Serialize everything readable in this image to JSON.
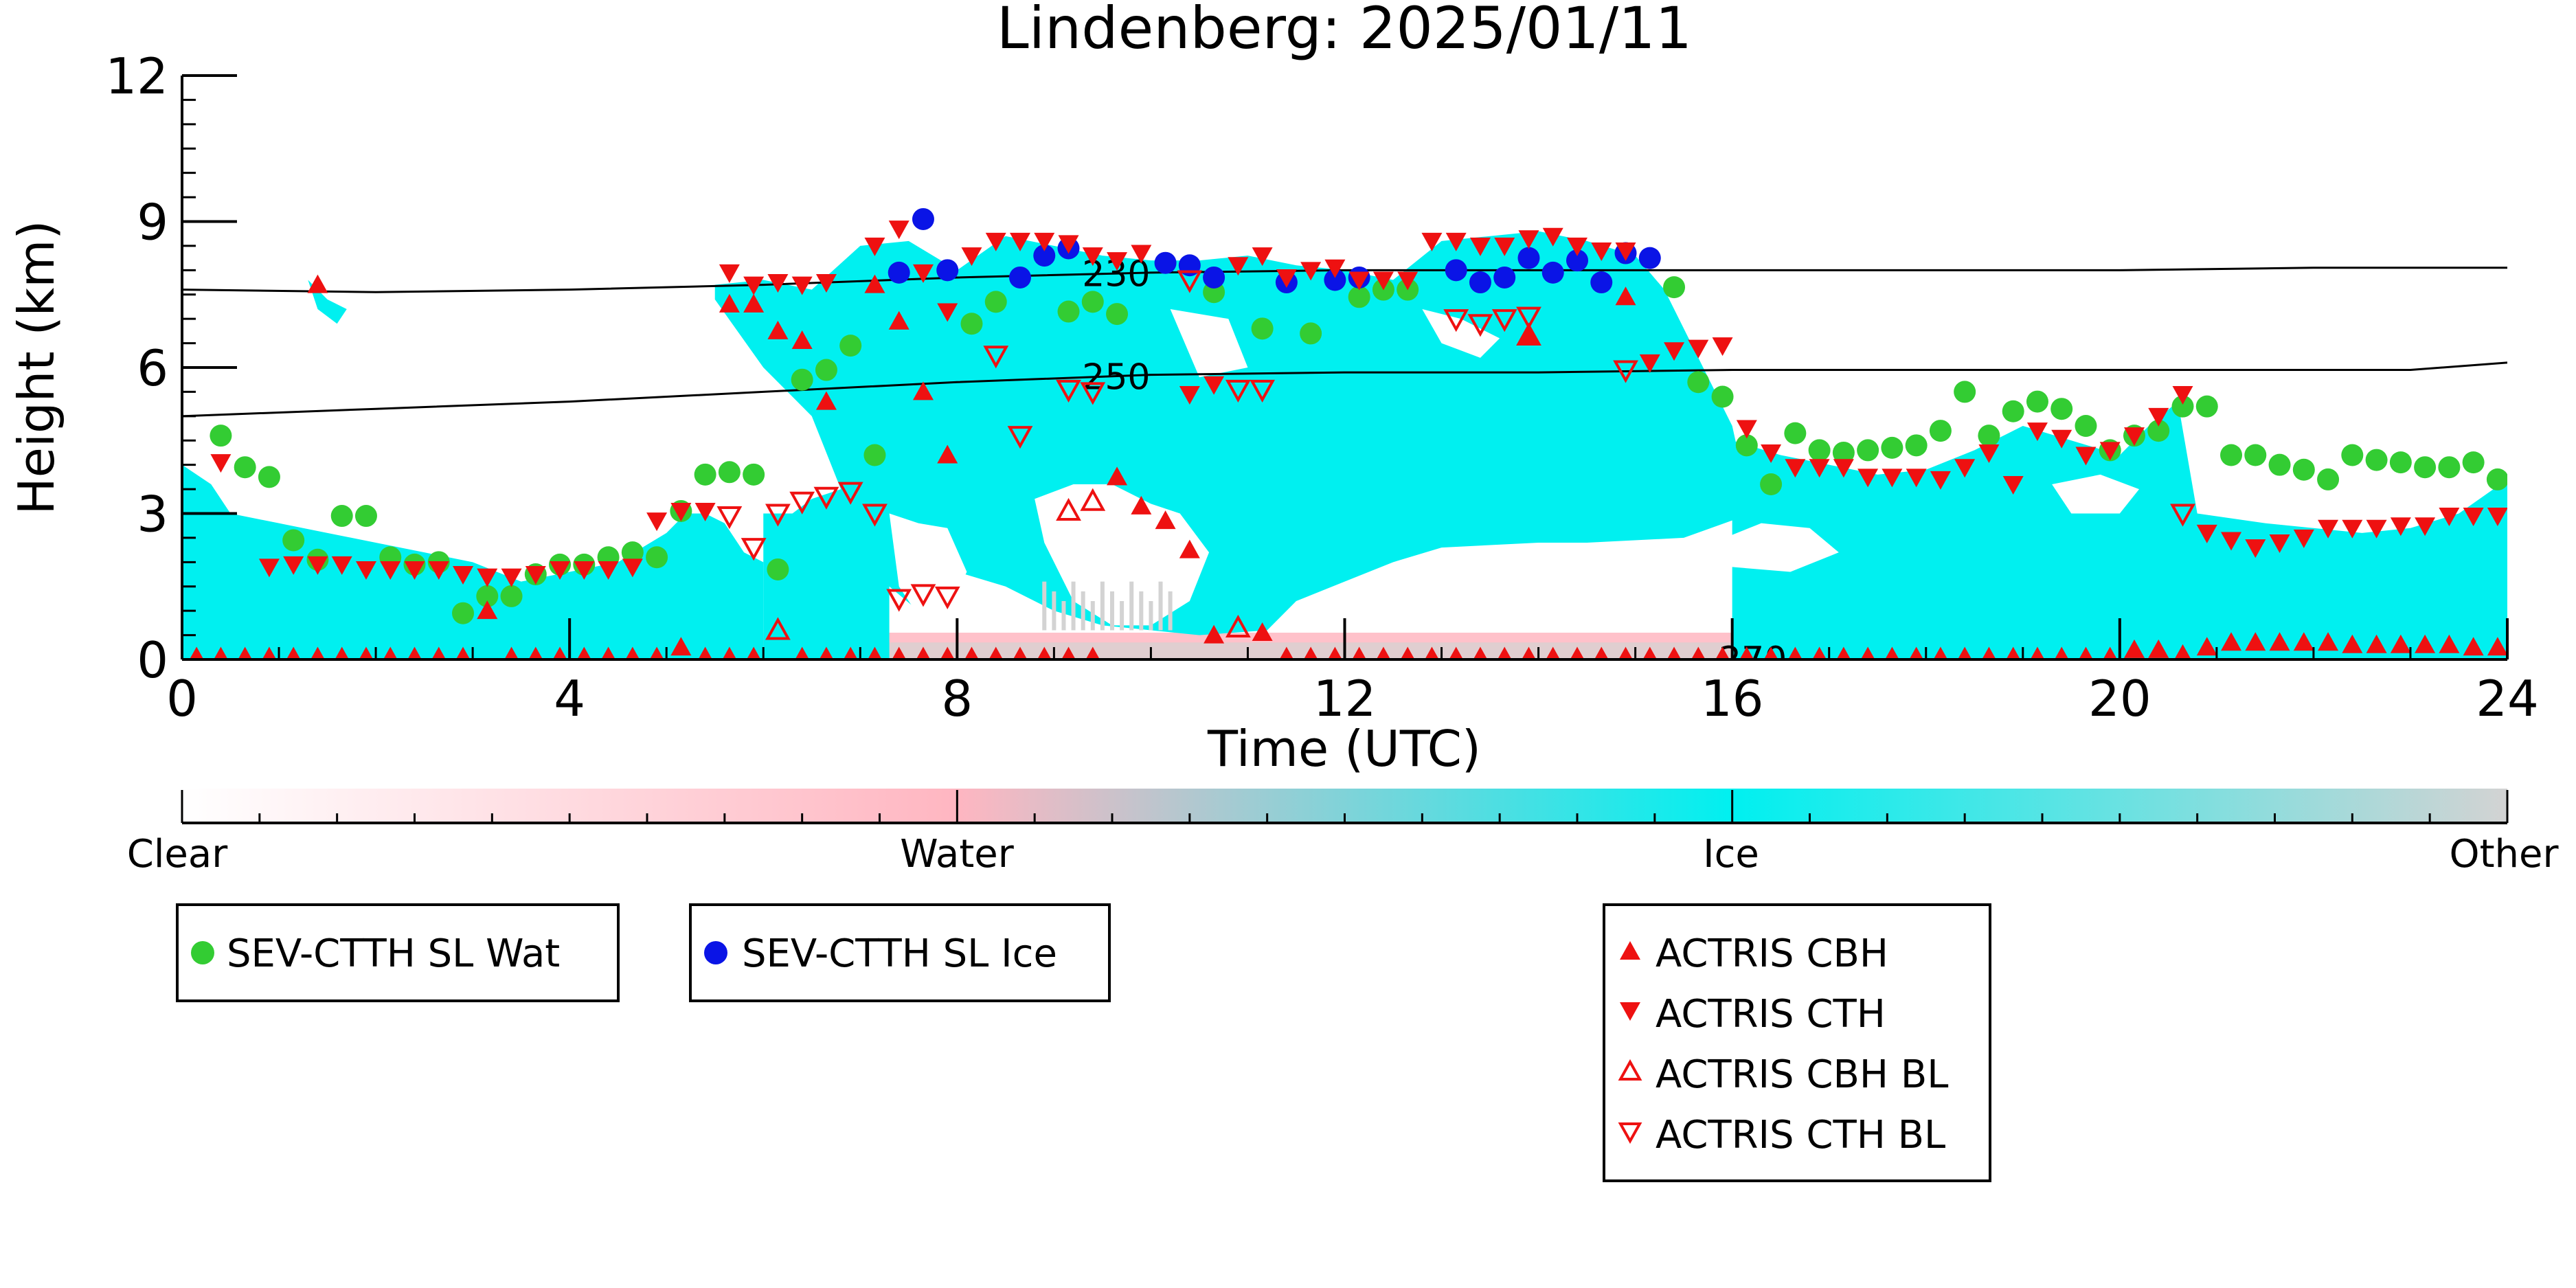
{
  "chart_data": {
    "type": "scatter",
    "title": "Lindenberg: 2025/01/11",
    "xlabel": "Time (UTC)",
    "ylabel": "Height (km)",
    "xlim": [
      0,
      24
    ],
    "ylim": [
      0,
      12
    ],
    "xticks": [
      0,
      4,
      8,
      12,
      16,
      20,
      24
    ],
    "yticks": [
      0,
      3,
      6,
      9,
      12
    ],
    "grid": false,
    "background_field": {
      "description_classes": [
        "Clear",
        "Water",
        "Ice",
        "Other"
      ],
      "colorbar": {
        "labels": [
          "Clear",
          "Water",
          "Ice",
          "Other"
        ],
        "colors": {
          "clear": "#ffffff",
          "water": "#ffb6c1",
          "ice": "#00f0f0",
          "other": "#d3d3d3"
        }
      },
      "ice_regions": [
        {
          "x": [
            0.0,
            0.3,
            0.5,
            1.0,
            1.5,
            2.0,
            2.5,
            3.0,
            3.5,
            4.0,
            4.5,
            5.0,
            5.2,
            5.4,
            5.6,
            5.8,
            6.0,
            6.0,
            0.0
          ],
          "y": [
            4.0,
            3.6,
            3.0,
            2.8,
            2.6,
            2.4,
            2.2,
            2.0,
            1.6,
            1.8,
            2.0,
            2.6,
            3.0,
            3.0,
            2.8,
            2.2,
            2.0,
            0.0,
            0.0
          ]
        },
        {
          "x": [
            6.0,
            6.3,
            6.5,
            6.8,
            7.0,
            7.2,
            7.3,
            7.3,
            6.0
          ],
          "y": [
            3.0,
            3.0,
            3.3,
            3.5,
            3.3,
            3.0,
            2.6,
            0.0,
            0.0
          ]
        },
        {
          "x": [
            1.3,
            1.5,
            1.7,
            1.6,
            1.4
          ],
          "y": [
            7.8,
            7.4,
            7.2,
            6.9,
            7.2
          ]
        },
        {
          "x": [
            5.5,
            6.0,
            6.5,
            7.0,
            7.5,
            8.0,
            8.5,
            9.0,
            9.5,
            10.0,
            10.5,
            11.0,
            11.5,
            12.0,
            12.5,
            13.0,
            13.5,
            14.0,
            14.5,
            15.0,
            15.3,
            15.6,
            16.0,
            16.2,
            15.5,
            14.5,
            14.0,
            13.0,
            12.5,
            12.0,
            11.5,
            11.2,
            10.5,
            10.0,
            9.5,
            9.0,
            8.5,
            8.0,
            7.6,
            7.3,
            7.0,
            6.5,
            6.0,
            5.5
          ],
          "y": [
            7.7,
            7.8,
            7.6,
            8.5,
            8.6,
            8.0,
            8.7,
            8.5,
            8.3,
            8.2,
            8.2,
            8.3,
            8.1,
            8.0,
            7.8,
            8.6,
            8.7,
            8.8,
            8.6,
            8.3,
            7.6,
            6.4,
            4.8,
            3.0,
            2.5,
            2.4,
            2.4,
            2.3,
            2.0,
            1.6,
            1.2,
            0.6,
            0.5,
            0.6,
            0.7,
            1.0,
            1.5,
            1.8,
            1.0,
            1.5,
            2.5,
            5.0,
            6.0,
            7.4
          ]
        },
        {
          "x": [
            16.0,
            16.5,
            17.0,
            17.5,
            18.0,
            18.5,
            19.0,
            19.5,
            20.0,
            20.3,
            20.6,
            20.8,
            21.5,
            22.0,
            22.5,
            23.0,
            23.5,
            24.0,
            24.0,
            16.0
          ],
          "y": [
            4.5,
            4.2,
            4.0,
            3.8,
            3.9,
            4.3,
            4.8,
            4.5,
            4.2,
            4.8,
            5.3,
            3.0,
            2.8,
            2.7,
            2.6,
            2.7,
            3.0,
            3.7,
            0.0,
            0.0
          ]
        }
      ],
      "clear_holes": [
        {
          "x": [
            8.8,
            9.2,
            9.6,
            10.0,
            10.3,
            10.6,
            10.4,
            10.0,
            9.6,
            9.2,
            8.9
          ],
          "y": [
            3.3,
            3.6,
            3.6,
            3.2,
            3.0,
            2.2,
            1.2,
            0.7,
            0.7,
            1.2,
            2.4
          ]
        },
        {
          "x": [
            7.3,
            7.6,
            7.9,
            8.1,
            7.9,
            7.6,
            7.4
          ],
          "y": [
            3.0,
            2.8,
            2.7,
            1.8,
            1.0,
            0.9,
            1.5
          ]
        },
        {
          "x": [
            10.2,
            10.8,
            11.0,
            10.5
          ],
          "y": [
            7.2,
            7.0,
            6.0,
            5.8
          ]
        },
        {
          "x": [
            12.8,
            13.2,
            13.6,
            13.4,
            13.0
          ],
          "y": [
            7.2,
            7.0,
            6.6,
            6.2,
            6.5
          ]
        },
        {
          "x": [
            15.8,
            16.3,
            16.8,
            17.1,
            16.6,
            16.0
          ],
          "y": [
            2.4,
            2.8,
            2.7,
            2.2,
            1.8,
            1.9
          ]
        },
        {
          "x": [
            19.3,
            19.8,
            20.2,
            20.0,
            19.5
          ],
          "y": [
            3.6,
            3.8,
            3.5,
            3.0,
            3.0
          ]
        }
      ],
      "water_band": {
        "top_km": 0.55,
        "other_band_top_km": 0.35
      }
    },
    "contours": [
      {
        "label": "230",
        "label_x": 9.5,
        "x": [
          0,
          2,
          4,
          6,
          8,
          10,
          12,
          14,
          16,
          18,
          20,
          22,
          24
        ],
        "y": [
          7.6,
          7.55,
          7.6,
          7.7,
          7.85,
          7.95,
          8.0,
          8.0,
          8.0,
          8.0,
          8.0,
          8.05,
          8.05
        ]
      },
      {
        "label": "250",
        "label_x": 9.5,
        "x": [
          0,
          2,
          4,
          6,
          8,
          10,
          12,
          14,
          16,
          18,
          20,
          22,
          23,
          24
        ],
        "y": [
          5.0,
          5.15,
          5.3,
          5.5,
          5.7,
          5.85,
          5.9,
          5.9,
          5.95,
          5.95,
          5.95,
          5.95,
          5.95,
          6.1
        ]
      },
      {
        "label": "270",
        "label_x": 16.0,
        "x": [],
        "y": []
      }
    ],
    "series": [
      {
        "name": "SEV-CTTH SL Wat",
        "marker": "circle",
        "color": "#33cc33",
        "x": [
          0.4,
          0.65,
          0.9,
          1.15,
          1.4,
          1.65,
          1.9,
          2.15,
          2.4,
          2.65,
          2.9,
          3.15,
          3.4,
          3.65,
          3.9,
          4.15,
          4.4,
          4.65,
          4.9,
          5.15,
          5.4,
          5.65,
          5.9,
          6.15,
          6.4,
          6.65,
          6.9,
          7.15,
          8.15,
          8.4,
          9.15,
          9.4,
          9.65,
          10.65,
          11.15,
          11.65,
          12.15,
          12.4,
          12.65,
          15.4,
          15.65,
          15.9,
          16.15,
          16.4,
          16.65,
          16.9,
          17.15,
          17.4,
          17.65,
          17.9,
          18.15,
          18.4,
          18.65,
          18.9,
          19.15,
          19.4,
          19.65,
          19.9,
          20.15,
          20.4,
          20.65,
          20.9,
          21.15,
          21.4,
          21.65,
          21.9,
          22.15,
          22.4,
          22.65,
          22.9,
          23.15,
          23.4,
          23.65,
          23.9
        ],
        "y": [
          4.6,
          3.95,
          3.75,
          2.45,
          2.05,
          2.95,
          2.95,
          2.1,
          1.95,
          2.0,
          0.95,
          1.3,
          1.3,
          1.75,
          1.95,
          1.95,
          2.1,
          2.2,
          2.1,
          3.05,
          3.8,
          3.85,
          3.8,
          1.85,
          5.75,
          5.95,
          6.45,
          4.2,
          6.9,
          7.35,
          7.15,
          7.35,
          7.1,
          7.55,
          6.8,
          6.7,
          7.45,
          7.6,
          7.6,
          7.65,
          5.7,
          5.4,
          4.4,
          3.6,
          4.65,
          4.3,
          4.25,
          4.3,
          4.35,
          4.4,
          4.7,
          5.5,
          4.6,
          5.1,
          5.3,
          5.15,
          4.8,
          4.3,
          4.6,
          4.7,
          5.2,
          5.2,
          4.2,
          4.2,
          4.0,
          3.9,
          3.7,
          4.2,
          4.1,
          4.05,
          3.95,
          3.95,
          4.05,
          3.7
        ]
      },
      {
        "name": "SEV-CTTH SL Ice",
        "marker": "circle",
        "color": "#0a14e6",
        "x": [
          7.4,
          7.65,
          7.9,
          8.65,
          8.9,
          9.15,
          10.15,
          10.4,
          10.65,
          11.4,
          11.9,
          12.15,
          13.15,
          13.4,
          13.65,
          13.9,
          14.15,
          14.4,
          14.65,
          14.9,
          15.15
        ],
        "y": [
          7.95,
          9.05,
          8.0,
          7.85,
          8.3,
          8.45,
          8.15,
          8.1,
          7.85,
          7.75,
          7.8,
          7.85,
          8.0,
          7.75,
          7.85,
          8.25,
          7.95,
          8.2,
          7.75,
          8.35,
          8.25
        ]
      },
      {
        "name": "ACTRIS CBH",
        "marker": "triangle-up",
        "filled": true,
        "color": "#ee1111",
        "x": [
          1.4,
          3.15,
          5.15,
          5.65,
          5.9,
          6.15,
          6.4,
          6.65,
          7.15,
          7.4,
          7.65,
          7.9,
          9.65,
          9.9,
          10.15,
          10.4,
          10.65,
          11.15,
          13.9,
          14.9,
          20.65,
          21.15,
          21.4,
          21.65,
          21.9,
          22.15,
          22.4,
          22.65,
          22.9,
          23.15,
          23.4,
          23.65,
          23.9
        ],
        "y": [
          7.7,
          1.0,
          0.25,
          7.3,
          7.3,
          6.75,
          6.55,
          5.3,
          7.7,
          6.95,
          5.5,
          4.2,
          3.75,
          3.15,
          2.85,
          2.25,
          0.5,
          0.55,
          6.65,
          7.45,
          0.1,
          0.35,
          0.35,
          0.35,
          0.35,
          0.35,
          0.3,
          0.3,
          0.3,
          0.3,
          0.3,
          0.25,
          0.25
        ]
      },
      {
        "name": "ACTRIS CTH",
        "marker": "triangle-down",
        "filled": true,
        "color": "#ee1111",
        "x": [
          0.4,
          0.9,
          1.15,
          1.4,
          1.65,
          1.9,
          2.15,
          2.4,
          2.65,
          2.9,
          3.15,
          3.4,
          3.65,
          3.9,
          4.15,
          4.4,
          4.65,
          4.9,
          5.15,
          5.4,
          5.65,
          5.9,
          6.15,
          6.4,
          6.65,
          7.15,
          7.4,
          7.65,
          7.9,
          8.15,
          8.4,
          8.65,
          8.9,
          9.15,
          9.4,
          9.65,
          9.9,
          10.4,
          10.65,
          10.9,
          11.15,
          11.4,
          11.65,
          11.9,
          12.15,
          12.4,
          12.65,
          12.9,
          13.15,
          13.4,
          13.65,
          13.9,
          14.15,
          14.4,
          14.65,
          14.9,
          15.15,
          15.4,
          15.65,
          15.9,
          16.15,
          16.4,
          16.65,
          16.9,
          17.15,
          17.4,
          17.65,
          17.9,
          18.15,
          18.4,
          18.65,
          18.9,
          19.15,
          19.4,
          19.65,
          19.9,
          20.15,
          20.4,
          20.65,
          20.9,
          21.15,
          21.4,
          21.65,
          21.9,
          22.15,
          22.4,
          22.65,
          22.9,
          23.15,
          23.4,
          23.65,
          23.9
        ],
        "y": [
          4.05,
          1.9,
          1.95,
          1.95,
          1.95,
          1.85,
          1.85,
          1.85,
          1.85,
          1.75,
          1.7,
          1.7,
          1.75,
          1.85,
          1.85,
          1.85,
          1.9,
          2.85,
          3.05,
          3.05,
          7.95,
          7.7,
          7.75,
          7.7,
          7.75,
          8.5,
          8.85,
          7.95,
          7.15,
          8.3,
          8.6,
          8.6,
          8.6,
          8.55,
          8.3,
          8.2,
          8.35,
          5.45,
          5.65,
          8.1,
          8.3,
          7.85,
          8.0,
          8.05,
          7.8,
          7.8,
          7.8,
          8.6,
          8.6,
          8.5,
          8.5,
          8.65,
          8.7,
          8.5,
          8.4,
          8.4,
          6.1,
          6.35,
          6.4,
          6.45,
          4.75,
          4.25,
          3.95,
          3.95,
          3.95,
          3.75,
          3.75,
          3.75,
          3.7,
          3.95,
          4.25,
          3.6,
          4.7,
          4.55,
          4.2,
          4.3,
          4.6,
          5.0,
          5.45,
          2.6,
          2.45,
          2.3,
          2.4,
          2.5,
          2.7,
          2.7,
          2.7,
          2.75,
          2.75,
          2.95,
          2.95,
          2.95
        ]
      },
      {
        "name": "ACTRIS CBH BL",
        "marker": "triangle-up",
        "filled": false,
        "color": "#ee1111",
        "x": [
          6.15,
          9.15,
          9.4,
          10.9,
          13.9
        ],
        "y": [
          0.6,
          3.05,
          3.25,
          0.65,
          6.65
        ]
      },
      {
        "name": "ACTRIS CTH BL",
        "marker": "triangle-down",
        "filled": false,
        "color": "#ee1111",
        "x": [
          5.65,
          5.9,
          6.15,
          6.4,
          6.65,
          6.9,
          7.15,
          7.4,
          7.65,
          7.9,
          8.4,
          8.65,
          9.15,
          9.4,
          10.4,
          10.9,
          11.15,
          13.15,
          13.4,
          13.65,
          13.9,
          14.9,
          20.65
        ],
        "y": [
          2.95,
          2.3,
          3.0,
          3.25,
          3.35,
          3.45,
          3.0,
          1.25,
          1.35,
          1.3,
          6.25,
          4.6,
          5.55,
          5.5,
          7.8,
          5.55,
          5.55,
          7.0,
          6.9,
          7.0,
          7.05,
          5.95,
          3.0
        ]
      },
      {
        "name": "ACTRIS CBH (surface)",
        "marker": "triangle-up",
        "filled": true,
        "color": "#ee1111",
        "in_legend": false,
        "x": [
          0.15,
          0.4,
          0.65,
          0.9,
          1.15,
          1.4,
          1.65,
          1.9,
          2.15,
          2.4,
          2.65,
          2.9,
          3.4,
          3.65,
          3.9,
          4.15,
          4.4,
          4.65,
          4.9,
          5.4,
          5.65,
          5.9,
          6.4,
          6.65,
          6.9,
          7.15,
          7.4,
          7.65,
          7.9,
          8.15,
          8.4,
          8.65,
          8.9,
          9.15,
          9.4,
          11.4,
          11.65,
          11.9,
          12.15,
          12.4,
          12.65,
          12.9,
          13.15,
          13.4,
          13.65,
          13.9,
          14.15,
          14.4,
          14.65,
          14.9,
          15.15,
          15.4,
          15.65,
          15.9,
          16.15,
          16.4,
          16.65,
          16.9,
          17.15,
          17.4,
          17.65,
          17.9,
          18.15,
          18.4,
          18.65,
          18.9,
          19.15,
          19.4,
          19.65,
          19.9,
          20.15,
          20.4,
          20.9
        ],
        "y": [
          0.05,
          0.05,
          0.05,
          0.05,
          0.05,
          0.05,
          0.05,
          0.05,
          0.05,
          0.05,
          0.05,
          0.05,
          0.05,
          0.05,
          0.05,
          0.05,
          0.05,
          0.05,
          0.05,
          0.05,
          0.05,
          0.05,
          0.05,
          0.05,
          0.05,
          0.05,
          0.05,
          0.05,
          0.05,
          0.05,
          0.05,
          0.05,
          0.05,
          0.05,
          0.05,
          0.05,
          0.05,
          0.05,
          0.05,
          0.05,
          0.05,
          0.05,
          0.05,
          0.05,
          0.05,
          0.05,
          0.05,
          0.05,
          0.05,
          0.05,
          0.05,
          0.05,
          0.05,
          0.05,
          0.05,
          0.05,
          0.05,
          0.05,
          0.05,
          0.05,
          0.05,
          0.05,
          0.05,
          0.05,
          0.05,
          0.05,
          0.05,
          0.05,
          0.05,
          0.05,
          0.2,
          0.2,
          0.25
        ]
      }
    ],
    "legends": [
      {
        "entries": [
          "SEV-CTTH SL Wat"
        ]
      },
      {
        "entries": [
          "SEV-CTTH SL Ice"
        ]
      },
      {
        "entries": [
          "ACTRIS CBH",
          "ACTRIS CTH",
          "ACTRIS CBH BL",
          "ACTRIS CTH BL"
        ]
      }
    ]
  }
}
